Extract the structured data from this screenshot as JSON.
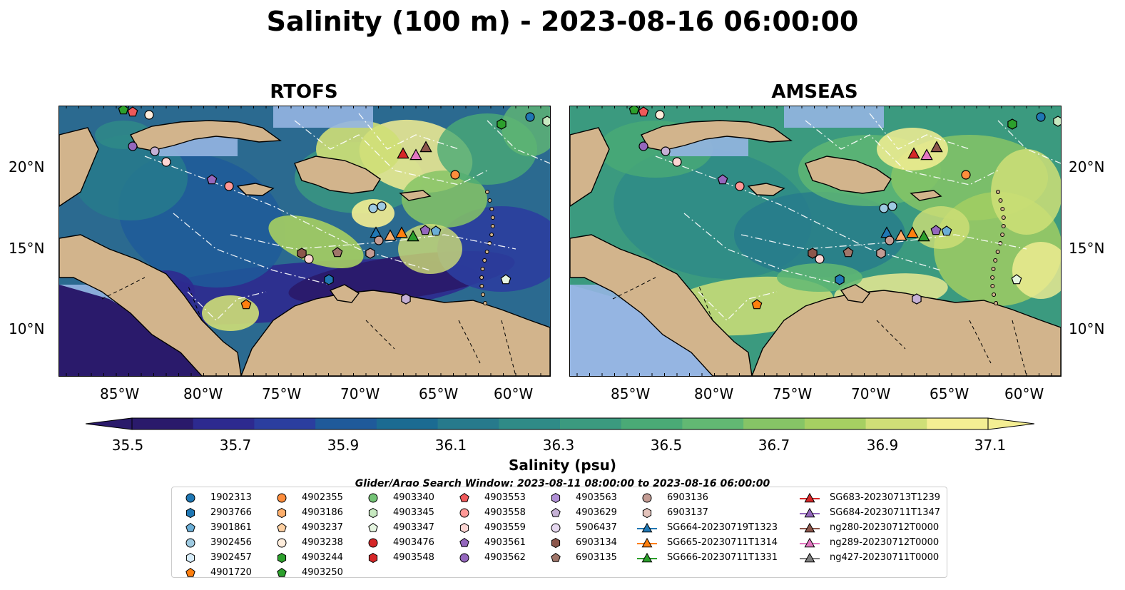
{
  "title": "Salinity (100 m) - 2023-08-16 06:00:00",
  "panels": [
    {
      "title": "RTOFS"
    },
    {
      "title": "AMSEAS"
    }
  ],
  "lon_labels": [
    "85°W",
    "80°W",
    "75°W",
    "70°W",
    "65°W",
    "60°W"
  ],
  "lat_labels": [
    "20°N",
    "15°N",
    "10°N"
  ],
  "colorbar": {
    "title": "Salinity (psu)",
    "ticks": [
      "35.5",
      "35.7",
      "35.9",
      "36.1",
      "36.3",
      "36.5",
      "36.7",
      "36.9",
      "37.1"
    ],
    "colors": [
      "#2a1a6b",
      "#2d2a8f",
      "#2b3e9f",
      "#1f5a9a",
      "#1b6b92",
      "#277a8c",
      "#2f8b87",
      "#3b9a7f",
      "#4aaa76",
      "#62b873",
      "#86c466",
      "#a6cf62",
      "#cfdf77",
      "#f4ee93"
    ]
  },
  "legend": {
    "title": "Glider/Argo Search Window: 2023-08-11 08:00:00 to 2023-08-16 06:00:00",
    "columns": [
      [
        {
          "label": "1902313",
          "shape": "circle",
          "color": "#1f77b4"
        },
        {
          "label": "2903766",
          "shape": "hexagon",
          "color": "#1f77b4"
        },
        {
          "label": "3901861",
          "shape": "pentagon",
          "color": "#6baed6"
        },
        {
          "label": "3902456",
          "shape": "circle",
          "color": "#9ecae1"
        },
        {
          "label": "3902457",
          "shape": "hexagon",
          "color": "#d6ecfa"
        },
        {
          "label": "4901720",
          "shape": "pentagon",
          "color": "#ff7f0e"
        }
      ],
      [
        {
          "label": "4902355",
          "shape": "circle",
          "color": "#fd8d3c"
        },
        {
          "label": "4903186",
          "shape": "hexagon",
          "color": "#fdae6b"
        },
        {
          "label": "4903237",
          "shape": "pentagon",
          "color": "#fdd0a2"
        },
        {
          "label": "4903238",
          "shape": "circle",
          "color": "#feeddc"
        },
        {
          "label": "4903244",
          "shape": "hexagon",
          "color": "#2ca02c"
        },
        {
          "label": "4903250",
          "shape": "pentagon",
          "color": "#2ca02c"
        }
      ],
      [
        {
          "label": "4903340",
          "shape": "circle",
          "color": "#74c476"
        },
        {
          "label": "4903345",
          "shape": "hexagon",
          "color": "#c7e9c0"
        },
        {
          "label": "4903347",
          "shape": "pentagon",
          "color": "#e5f5e0"
        },
        {
          "label": "4903476",
          "shape": "circle",
          "color": "#d62728"
        },
        {
          "label": "4903548",
          "shape": "hexagon",
          "color": "#d62728"
        }
      ],
      [
        {
          "label": "4903553",
          "shape": "pentagon",
          "color": "#f0595a"
        },
        {
          "label": "4903558",
          "shape": "circle",
          "color": "#ff9896"
        },
        {
          "label": "4903559",
          "shape": "hexagon",
          "color": "#fcd5d3"
        },
        {
          "label": "4903561",
          "shape": "pentagon",
          "color": "#9467bd"
        },
        {
          "label": "4903562",
          "shape": "circle",
          "color": "#9467bd"
        }
      ],
      [
        {
          "label": "4903563",
          "shape": "hexagon",
          "color": "#b08fd6"
        },
        {
          "label": "4903629",
          "shape": "pentagon",
          "color": "#c5b0d5"
        },
        {
          "label": "5906437",
          "shape": "circle",
          "color": "#e6d8f0"
        },
        {
          "label": "6903134",
          "shape": "hexagon",
          "color": "#8c564b"
        },
        {
          "label": "6903135",
          "shape": "pentagon",
          "color": "#a0766a"
        }
      ],
      [
        {
          "label": "6903136",
          "shape": "circle",
          "color": "#c49c94"
        },
        {
          "label": "6903137",
          "shape": "hexagon",
          "color": "#e4c3bb"
        },
        {
          "label": "SG664-20230719T1323",
          "shape": "triangle-line",
          "color": "#1f77b4"
        },
        {
          "label": "SG665-20230711T1314",
          "shape": "triangle-line",
          "color": "#ff7f0e"
        },
        {
          "label": "SG666-20230711T1331",
          "shape": "triangle-line",
          "color": "#2ca02c"
        }
      ],
      [
        {
          "label": "SG683-20230713T1239",
          "shape": "triangle-line",
          "color": "#d62728"
        },
        {
          "label": "SG684-20230711T1347",
          "shape": "triangle-line",
          "color": "#9467bd"
        },
        {
          "label": "ng280-20230712T0000",
          "shape": "triangle-line",
          "color": "#8c564b"
        },
        {
          "label": "ng289-20230712T0000",
          "shape": "triangle-line",
          "color": "#e377c2"
        },
        {
          "label": "ng427-20230711T0000",
          "shape": "triangle-line",
          "color": "#7f7f7f"
        }
      ]
    ]
  }
}
